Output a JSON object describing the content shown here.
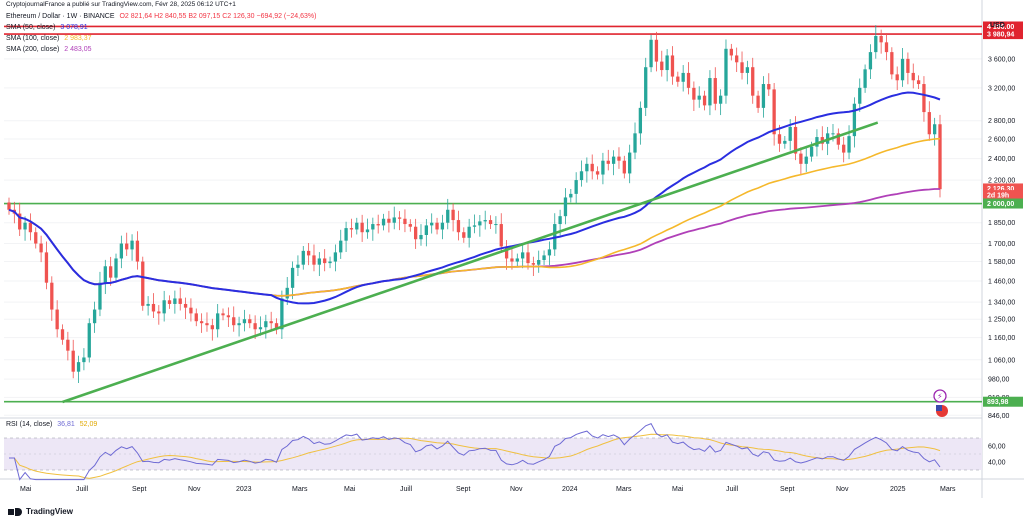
{
  "header": {
    "published": "CryptojournalFrance a publié sur TradingView.com, Févr 28, 2025 06:12 UTC+1",
    "symbol": "Ethereum / Dollar · 1W · BINANCE",
    "ohlc": "O2 821,64  H2 840,55  B2 097,15  C2 126,30  −694,92 (−24,63%)",
    "sma50_label": "SMA (50, close)",
    "sma50_value": "3 078,91",
    "sma100_label": "SMA (100, close)",
    "sma100_value": "2 983,37",
    "sma200_label": "SMA (200, close)",
    "sma200_value": "2 483,05",
    "rsi_label": "RSI (14, close)",
    "rsi_value": "36,81",
    "rsi_ma_value": "52,09"
  },
  "footer": {
    "brand": "TradingView"
  },
  "colors": {
    "up": "#26a69a",
    "down": "#ef5350",
    "sma50": "#2a2ee0",
    "sma100": "#f5b82b",
    "sma200": "#b040b8",
    "trend": "#4caf50",
    "hline_red": "#e0242f",
    "hline_green": "#4caf50",
    "rsi": "#6e6ad4",
    "rsi_ma": "#f0c040",
    "rsi_band": "#ede7f6"
  },
  "chart_data": {
    "type": "candlestick",
    "title": "Ethereum / Dollar · 1W · BINANCE",
    "currency": "USD",
    "scale": "log",
    "ylim": [
      830,
      4250
    ],
    "x_labels": [
      "Mai",
      "Juill",
      "Sept",
      "Nov",
      "2023",
      "Mars",
      "Mai",
      "Juill",
      "Sept",
      "Nov",
      "2024",
      "Mars",
      "Mai",
      "Juill",
      "Sept",
      "Nov",
      "2025",
      "Mars"
    ],
    "y_ticks": [
      "4 100,00",
      "3 600,00",
      "3 200,00",
      "2 800,00",
      "2 600,00",
      "2 400,00",
      "2 200,00",
      "2 000,00",
      "1 850,00",
      "1 700,00",
      "1 580,00",
      "1 460,00",
      "1 340,00",
      "1 250,00",
      "1 160,00",
      "1 060,00",
      "980,00",
      "910,00",
      "846,00"
    ],
    "price_tags": [
      {
        "label": "4 106,00",
        "value": 4106,
        "color": "#e0242f"
      },
      {
        "label": "3 980,94",
        "value": 3980.94,
        "color": "#e0242f"
      },
      {
        "label": "2 126,30",
        "value": 2126.3,
        "color": "#ef5350"
      },
      {
        "label": "2d 19h",
        "value": 2070,
        "color": "#ef5350"
      },
      {
        "label": "2 000,00",
        "value": 2000,
        "color": "#4caf50"
      },
      {
        "label": "893,98",
        "value": 893.98,
        "color": "#4caf50"
      }
    ],
    "horizontal_lines": [
      {
        "value": 4106,
        "color": "#e0242f"
      },
      {
        "value": 3980.94,
        "color": "#e0242f"
      },
      {
        "value": 2000,
        "color": "#4caf50"
      },
      {
        "value": 893.98,
        "color": "#4caf50"
      }
    ],
    "trendline": {
      "from": [
        10,
        893
      ],
      "to": [
        159,
        2690
      ]
    },
    "closes": [
      1950,
      1920,
      1800,
      1850,
      1780,
      1700,
      1640,
      1450,
      1300,
      1200,
      1150,
      1100,
      1010,
      1050,
      1070,
      1230,
      1300,
      1450,
      1550,
      1480,
      1600,
      1700,
      1660,
      1720,
      1580,
      1320,
      1330,
      1290,
      1280,
      1350,
      1330,
      1360,
      1330,
      1310,
      1280,
      1240,
      1230,
      1220,
      1200,
      1280,
      1270,
      1260,
      1220,
      1230,
      1250,
      1230,
      1200,
      1210,
      1240,
      1230,
      1200,
      1360,
      1420,
      1540,
      1560,
      1650,
      1620,
      1560,
      1600,
      1570,
      1580,
      1640,
      1720,
      1810,
      1800,
      1850,
      1780,
      1800,
      1840,
      1830,
      1880,
      1850,
      1890,
      1880,
      1840,
      1820,
      1730,
      1760,
      1830,
      1850,
      1800,
      1850,
      1950,
      1870,
      1780,
      1740,
      1820,
      1830,
      1860,
      1870,
      1840,
      1840,
      1680,
      1600,
      1580,
      1600,
      1640,
      1570,
      1560,
      1590,
      1620,
      1660,
      1840,
      1900,
      2050,
      2080,
      2200,
      2280,
      2350,
      2280,
      2250,
      2380,
      2350,
      2420,
      2380,
      2260,
      2460,
      2660,
      2950,
      3480,
      3890,
      3560,
      3440,
      3650,
      3350,
      3280,
      3400,
      3200,
      3050,
      3100,
      2980,
      3330,
      3000,
      3100,
      3750,
      3650,
      3550,
      3400,
      3480,
      3100,
      2950,
      3250,
      3180,
      2650,
      2550,
      2580,
      2730,
      2450,
      2350,
      2420,
      2520,
      2620,
      2550,
      2660,
      2660,
      2540,
      2460,
      2630,
      3000,
      3200,
      3450,
      3700,
      3950,
      3850,
      3700,
      3380,
      3300,
      3600,
      3400,
      3300,
      3250,
      2900,
      2650,
      2760,
      2120
    ]
  }
}
